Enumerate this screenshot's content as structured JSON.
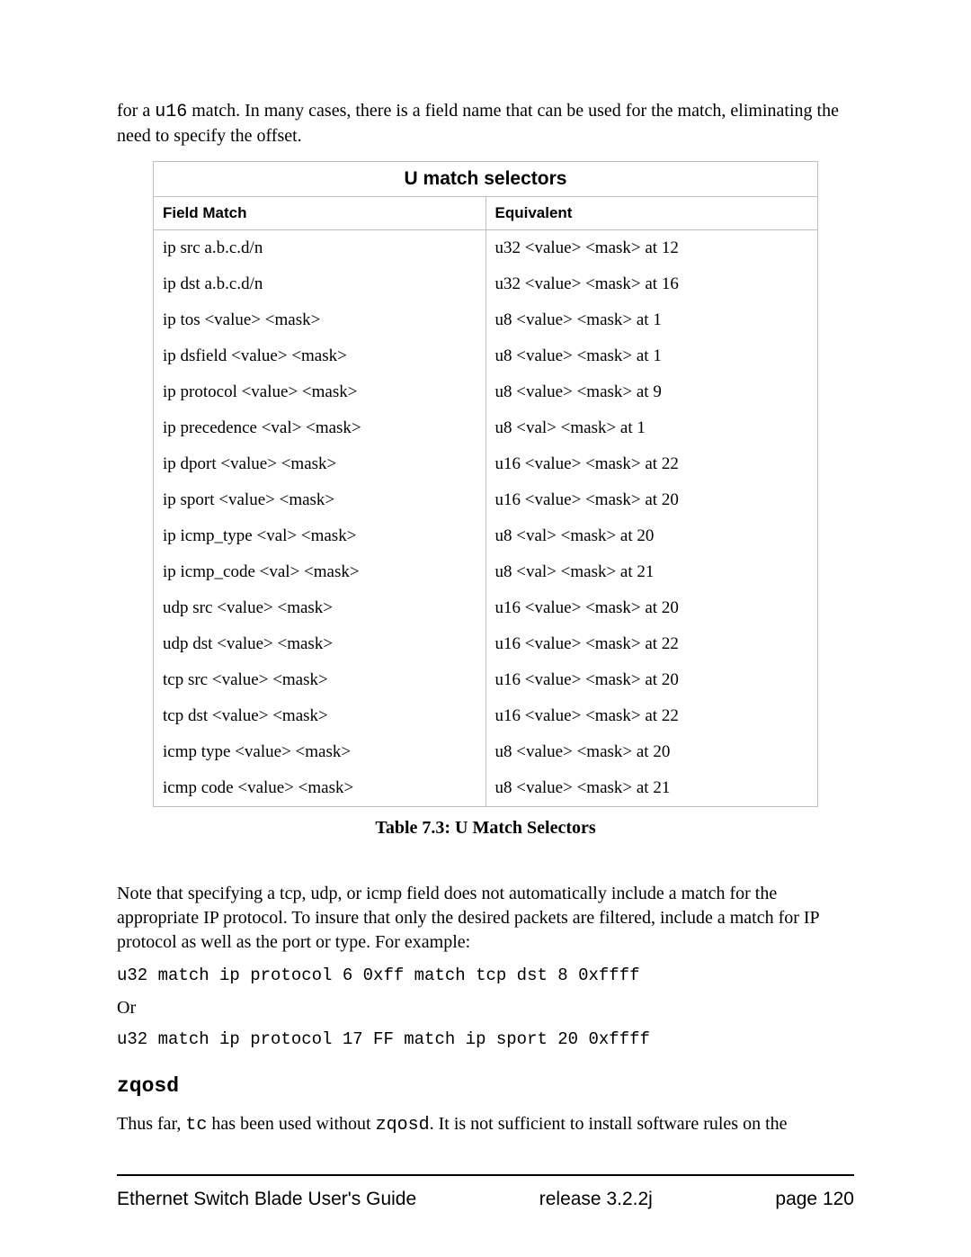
{
  "intro": {
    "pre": "for a ",
    "code": "u16",
    "post": " match.  In many cases, there is a field name that can be used for the match, eliminating the need to specify the offset."
  },
  "table": {
    "title": "U match selectors",
    "headers": {
      "col1": "Field Match",
      "col2": "Equivalent"
    },
    "rows": [
      {
        "field": "ip src a.b.c.d/n",
        "equiv": "u32 <value> <mask> at 12"
      },
      {
        "field": "ip dst a.b.c.d/n",
        "equiv": "u32 <value> <mask> at 16"
      },
      {
        "field": "ip tos <value> <mask>",
        "equiv": "u8 <value> <mask> at 1"
      },
      {
        "field": "ip dsfield <value> <mask>",
        "equiv": "u8 <value> <mask> at 1"
      },
      {
        "field": "ip protocol <value> <mask>",
        "equiv": "u8 <value> <mask> at 9"
      },
      {
        "field": "ip precedence <val> <mask>",
        "equiv": "u8 <val> <mask> at 1"
      },
      {
        "field": "ip dport <value> <mask>",
        "equiv": "u16 <value> <mask> at 22"
      },
      {
        "field": "ip sport <value> <mask>",
        "equiv": "u16 <value> <mask> at 20"
      },
      {
        "field": "ip icmp_type <val> <mask>",
        "equiv": "u8 <val> <mask> at 20"
      },
      {
        "field": "ip icmp_code <val> <mask>",
        "equiv": "u8 <val> <mask> at 21"
      },
      {
        "field": "udp src <value> <mask>",
        "equiv": "u16 <value> <mask> at 20"
      },
      {
        "field": "udp dst <value> <mask>",
        "equiv": "u16 <value> <mask> at 22"
      },
      {
        "field": "tcp src <value> <mask>",
        "equiv": "u16 <value> <mask> at 20"
      },
      {
        "field": "tcp dst <value> <mask>",
        "equiv": "u16 <value> <mask> at 22"
      },
      {
        "field": "icmp type <value> <mask>",
        "equiv": "u8 <value> <mask> at 20"
      },
      {
        "field": "icmp code <value> <mask>",
        "equiv": "u8 <value> <mask> at 21"
      }
    ],
    "caption": "Table 7.3: U Match Selectors"
  },
  "note": "Note that specifying a tcp, udp, or icmp field does not automatically include a match for the appropriate IP protocol.  To insure that only the desired packets are filtered, include a match for IP protocol as well as the port or type.  For example:",
  "code1": "u32 match ip protocol 6 0xff match tcp dst 8 0xffff",
  "or": "Or",
  "code2": "u32 match ip protocol 17 FF match ip sport 20 0xffff",
  "section_head": "zqosd",
  "body": {
    "pre": "Thus far, ",
    "c1": "tc",
    "mid": " has been used without ",
    "c2": "zqosd",
    "post": ".  It is not sufficient to install software rules on the"
  },
  "footer": {
    "left": "Ethernet Switch Blade User's Guide",
    "mid": "release  3.2.2j",
    "right": "page 120"
  }
}
